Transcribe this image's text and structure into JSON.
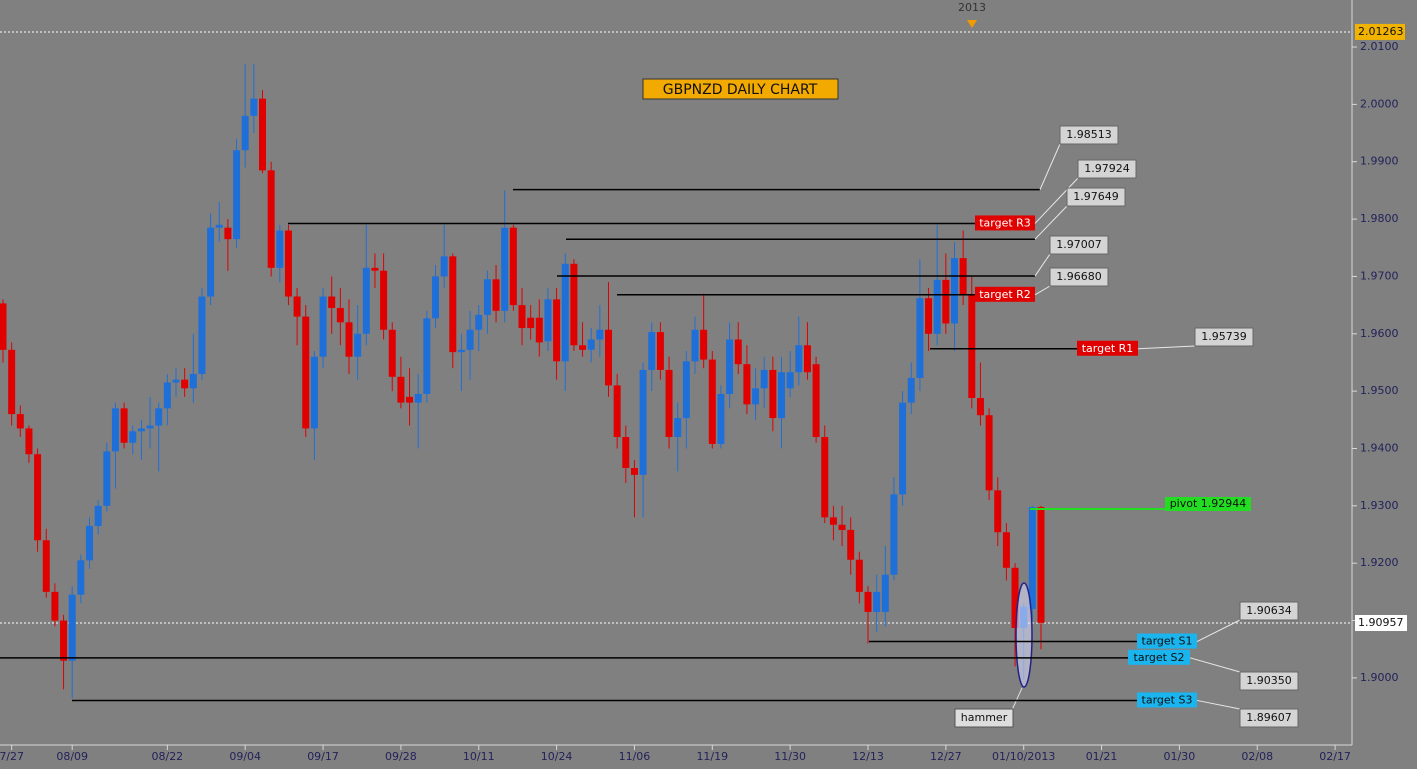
{
  "chart_data": {
    "type": "candlestick",
    "title": "GBPNZD DAILY CHART",
    "period_marker": "2013",
    "up_color": "#1f6fd8",
    "down_color": "#e00000",
    "categories": [
      null,
      "7/27",
      null,
      null,
      null,
      null,
      null,
      null,
      "08/09",
      null,
      null,
      null,
      null,
      null,
      null,
      null,
      null,
      null,
      null,
      "08/22",
      null,
      null,
      null,
      null,
      null,
      null,
      null,
      null,
      "09/04",
      null,
      null,
      null,
      null,
      null,
      null,
      null,
      null,
      "09/17",
      null,
      null,
      null,
      null,
      null,
      null,
      null,
      null,
      "09/28",
      null,
      null,
      null,
      null,
      null,
      null,
      null,
      null,
      "10/11",
      null,
      null,
      null,
      null,
      null,
      null,
      null,
      null,
      "10/24",
      null,
      null,
      null,
      null,
      null,
      null,
      null,
      null,
      "11/06",
      null,
      null,
      null,
      null,
      null,
      null,
      null,
      null,
      "11/19",
      null,
      null,
      null,
      null,
      null,
      null,
      null,
      null,
      "11/30",
      null,
      null,
      null,
      null,
      null,
      null,
      null,
      null,
      "12/13",
      null,
      null,
      null,
      null,
      null,
      null,
      null,
      null,
      "12/27",
      null,
      null,
      null,
      null,
      null,
      null,
      null,
      null,
      "01/10/2013",
      null,
      null,
      null,
      null,
      null,
      null,
      null,
      null,
      "01/21",
      null,
      null,
      null,
      null,
      null,
      null,
      null,
      null,
      "01/30",
      null,
      null,
      null,
      null,
      null,
      null,
      null,
      null,
      "02/08",
      null,
      null,
      null,
      null,
      null,
      null,
      null,
      null,
      "02/17"
    ],
    "open": [
      1.9653,
      1.9572,
      1.946,
      1.9435,
      1.939,
      1.924,
      1.915,
      1.91,
      1.903,
      1.9145,
      1.9205,
      1.9265,
      1.93,
      1.9395,
      1.947,
      1.941,
      1.943,
      1.9435,
      1.944,
      1.947,
      1.9515,
      1.952,
      1.9505,
      1.953,
      1.9665,
      1.9785,
      1.9785,
      1.9765,
      1.992,
      1.998,
      2.001,
      1.9885,
      1.9715,
      1.978,
      1.9665,
      1.963,
      1.9435,
      1.956,
      1.9665,
      1.9645,
      1.962,
      1.956,
      1.96,
      1.9715,
      1.971,
      1.9607,
      1.9525,
      1.949,
      1.948,
      1.9495,
      1.9627,
      1.97,
      1.9735,
      1.9568,
      1.9572,
      1.9607,
      1.9633,
      1.9695,
      1.964,
      1.9785,
      1.965,
      1.9628,
      1.9628,
      1.9587,
      1.966,
      1.9552,
      1.9722,
      1.958,
      1.9572,
      1.959,
      1.9607,
      1.951,
      1.942,
      1.9366,
      1.9354,
      1.9537,
      1.9603,
      1.9537,
      1.942,
      1.9453,
      1.9552,
      1.9607,
      1.9555,
      1.9408,
      1.9495,
      1.959,
      1.9547,
      1.9477,
      1.9505,
      1.9537,
      1.9453,
      1.9505,
      1.9533,
      1.958,
      1.9547,
      1.942,
      1.928,
      1.9267,
      1.9258,
      1.9206,
      1.915,
      1.9115,
      1.9115,
      1.918,
      1.932,
      1.948,
      1.9523,
      1.9662,
      1.96,
      1.9694,
      1.9618,
      1.9732,
      1.9668,
      1.9488,
      1.9458,
      1.9327,
      1.9254,
      1.9192,
      1.9087,
      1.912,
      1.9298,
      null,
      null,
      null,
      null,
      null,
      null,
      null,
      null,
      null,
      null,
      null,
      null,
      null,
      null,
      null,
      null,
      null,
      null,
      null,
      null,
      null,
      null,
      null,
      null,
      null,
      null,
      null,
      null,
      null,
      null,
      null,
      null,
      null,
      null
    ],
    "high": [
      1.966,
      1.9585,
      1.9475,
      1.944,
      1.94,
      1.926,
      1.9165,
      1.911,
      1.916,
      1.9215,
      1.928,
      1.931,
      1.941,
      1.948,
      1.948,
      1.944,
      1.945,
      1.949,
      1.948,
      1.953,
      1.954,
      1.954,
      1.96,
      1.968,
      1.981,
      1.983,
      1.98,
      1.994,
      2.007,
      2.007,
      2.0025,
      1.99,
      1.979,
      1.979,
      1.968,
      1.965,
      1.957,
      1.968,
      1.97,
      1.968,
      1.966,
      1.965,
      1.979,
      1.974,
      1.974,
      1.962,
      1.956,
      1.954,
      1.953,
      1.964,
      1.972,
      1.979,
      1.974,
      1.96,
      1.964,
      1.965,
      1.971,
      1.972,
      1.985,
      1.979,
      1.968,
      1.965,
      1.966,
      1.968,
      1.968,
      1.974,
      1.973,
      1.962,
      1.961,
      1.965,
      1.969,
      1.953,
      1.944,
      1.938,
      1.955,
      1.962,
      1.962,
      1.956,
      1.948,
      1.957,
      1.963,
      1.967,
      1.957,
      1.951,
      1.962,
      1.962,
      1.958,
      1.954,
      1.956,
      1.956,
      1.956,
      1.957,
      1.963,
      1.962,
      1.956,
      1.944,
      1.93,
      1.93,
      1.928,
      1.922,
      1.916,
      1.918,
      1.923,
      1.935,
      1.95,
      1.955,
      1.973,
      1.968,
      1.979,
      1.974,
      1.976,
      1.978,
      1.97,
      1.955,
      1.947,
      1.935,
      1.927,
      1.92,
      1.913,
      1.93,
      1.93,
      null,
      null,
      null,
      null,
      null,
      null,
      null,
      null,
      null,
      null,
      null,
      null,
      null,
      null,
      null,
      null,
      null,
      null,
      null,
      null,
      null,
      null,
      null,
      null,
      null,
      null,
      null,
      null,
      null,
      null,
      null,
      null,
      null,
      null
    ],
    "low": [
      1.955,
      1.944,
      1.942,
      1.9375,
      1.922,
      1.914,
      1.909,
      1.898,
      1.8965,
      1.913,
      1.919,
      1.925,
      1.929,
      1.933,
      1.94,
      1.939,
      1.938,
      1.94,
      1.936,
      1.944,
      1.949,
      1.949,
      1.948,
      1.952,
      1.965,
      1.976,
      1.971,
      1.975,
      1.989,
      1.995,
      1.988,
      1.97,
      1.969,
      1.965,
      1.958,
      1.942,
      1.938,
      1.954,
      1.96,
      1.958,
      1.953,
      1.952,
      1.958,
      1.968,
      1.959,
      1.95,
      1.947,
      1.944,
      1.94,
      1.948,
      1.961,
      1.968,
      1.954,
      1.95,
      1.952,
      1.957,
      1.96,
      1.962,
      1.962,
      1.964,
      1.958,
      1.959,
      1.956,
      1.957,
      1.952,
      1.95,
      1.957,
      1.956,
      1.955,
      1.956,
      1.949,
      1.94,
      1.934,
      1.928,
      1.928,
      1.95,
      1.952,
      1.94,
      1.936,
      1.94,
      1.953,
      1.954,
      1.94,
      1.94,
      1.947,
      1.953,
      1.946,
      1.945,
      1.947,
      1.943,
      1.94,
      1.949,
      1.951,
      1.952,
      1.941,
      1.927,
      1.924,
      1.923,
      1.918,
      1.913,
      1.906,
      1.908,
      1.909,
      1.917,
      1.93,
      1.946,
      1.95,
      1.957,
      1.958,
      1.96,
      1.957,
      1.965,
      1.947,
      1.944,
      1.931,
      1.923,
      1.917,
      1.902,
      1.8997,
      1.91,
      1.905,
      null,
      null,
      null,
      null,
      null,
      null,
      null,
      null,
      null,
      null,
      null,
      null,
      null,
      null,
      null,
      null,
      null,
      null,
      null,
      null,
      null,
      null,
      null,
      null,
      null,
      null,
      null,
      null,
      null,
      null,
      null,
      null,
      null,
      null
    ],
    "close": [
      1.9572,
      1.946,
      1.9435,
      1.939,
      1.924,
      1.915,
      1.91,
      1.903,
      1.9145,
      1.9205,
      1.9265,
      1.93,
      1.9395,
      1.947,
      1.941,
      1.943,
      1.9435,
      1.944,
      1.947,
      1.9515,
      1.952,
      1.9505,
      1.953,
      1.9665,
      1.9785,
      1.979,
      1.9765,
      1.992,
      1.998,
      2.001,
      1.9885,
      1.9715,
      1.978,
      1.9665,
      1.963,
      1.9435,
      1.956,
      1.9665,
      1.9645,
      1.962,
      1.956,
      1.96,
      1.9715,
      1.971,
      1.9607,
      1.9525,
      1.948,
      1.948,
      1.9495,
      1.9627,
      1.97,
      1.9735,
      1.9568,
      1.9572,
      1.9607,
      1.9633,
      1.9695,
      1.964,
      1.9785,
      1.965,
      1.961,
      1.961,
      1.9585,
      1.966,
      1.9552,
      1.9722,
      1.958,
      1.9572,
      1.959,
      1.9607,
      1.951,
      1.942,
      1.9366,
      1.9354,
      1.9537,
      1.9603,
      1.9537,
      1.942,
      1.9453,
      1.9552,
      1.9607,
      1.9555,
      1.9408,
      1.9495,
      1.959,
      1.9547,
      1.9477,
      1.9505,
      1.9537,
      1.9453,
      1.9533,
      1.9533,
      1.958,
      1.9533,
      1.942,
      1.928,
      1.9267,
      1.9258,
      1.9206,
      1.915,
      1.9115,
      1.915,
      1.918,
      1.932,
      1.948,
      1.9523,
      1.9662,
      1.96,
      1.9694,
      1.9618,
      1.9732,
      1.9668,
      1.9488,
      1.9458,
      1.9327,
      1.9254,
      1.9192,
      1.9087,
      1.9124,
      1.9298,
      1.9096,
      null,
      null,
      null,
      null,
      null,
      null,
      null,
      null,
      null,
      null,
      null,
      null,
      null,
      null,
      null,
      null,
      null,
      null,
      null,
      null,
      null,
      null,
      null,
      null,
      null,
      null,
      null,
      null,
      null,
      null,
      null,
      null,
      null,
      null
    ],
    "ylim": [
      1.8883,
      2.0182
    ],
    "yticks": [
      {
        "value": 1.9,
        "label": "1.9000"
      },
      {
        "value": 1.91,
        "label": "1.9100"
      },
      {
        "value": 1.92,
        "label": "1.9200"
      },
      {
        "value": 1.93,
        "label": "1.9300"
      },
      {
        "value": 1.94,
        "label": "1.9400"
      },
      {
        "value": 1.95,
        "label": "1.9500"
      },
      {
        "value": 1.96,
        "label": "1.9600"
      },
      {
        "value": 1.97,
        "label": "1.9700"
      },
      {
        "value": 1.98,
        "label": "1.9800"
      },
      {
        "value": 1.99,
        "label": "1.9900"
      },
      {
        "value": 2.0,
        "label": "2.0000"
      },
      {
        "value": 2.01,
        "label": "2.0100"
      }
    ],
    "high_line": {
      "value": 2.01263,
      "label": "2.01263"
    },
    "current_price": {
      "value": 1.90957,
      "label": "1.90957"
    },
    "levels": [
      {
        "value": 1.98513,
        "label": "1.98513"
      },
      {
        "value": 1.97924,
        "label": "1.97924",
        "target": "target R3"
      },
      {
        "value": 1.97649,
        "label": "1.97649"
      },
      {
        "value": 1.97007,
        "label": "1.97007"
      },
      {
        "value": 1.9668,
        "label": "1.96680",
        "target": "target R2"
      },
      {
        "value": 1.95739,
        "label": "1.95739",
        "target": "target R1"
      },
      {
        "value": 1.92944,
        "label": "pivot 1.92944"
      },
      {
        "value": 1.90634,
        "label": "1.90634",
        "target": "target S1"
      },
      {
        "value": 1.9035,
        "label": "1.90350",
        "target": "target S2"
      },
      {
        "value": 1.89607,
        "label": "1.89607",
        "target": "target S3"
      }
    ],
    "annotation": "hammer"
  }
}
